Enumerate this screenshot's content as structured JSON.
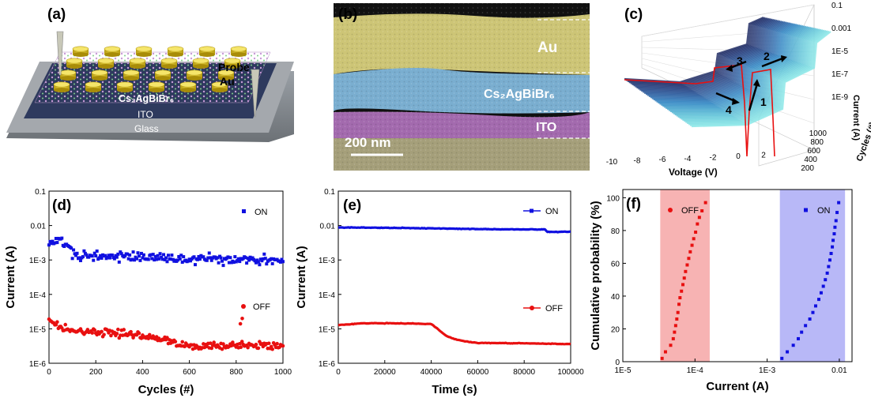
{
  "panels": {
    "a": {
      "label": "(a)",
      "labels": {
        "probe": "Probe",
        "au": "Au",
        "material": "Cs₂AgBiBr₆",
        "ito": "ITO",
        "glass": "Glass"
      }
    },
    "b": {
      "label": "(b)",
      "labels": {
        "au": "Au",
        "material": "Cs₂AgBiBr₆",
        "ito": "ITO",
        "scale": "200 nm"
      }
    },
    "c": {
      "label": "(c)",
      "xlabel": "Voltage (V)",
      "ylabel": "Current (A)",
      "zlabel": "Cycles (#)",
      "xticks": [
        "-10",
        "-8",
        "-6",
        "-4",
        "-2",
        "0",
        "2"
      ],
      "yticks": [
        "0.1",
        "0.001",
        "1E-5",
        "1E-7",
        "1E-9"
      ],
      "zticks": [
        "1000",
        "800",
        "600",
        "400",
        "200"
      ],
      "arrows": [
        "1",
        "2",
        "3",
        "4"
      ]
    },
    "d": {
      "label": "(d)",
      "xlabel": "Cycles (#)",
      "ylabel": "Current (A)",
      "xticks": [
        "0",
        "200",
        "400",
        "600",
        "800",
        "1000"
      ],
      "yticks": [
        "0.1",
        "0.01",
        "1E-3",
        "1E-4",
        "1E-5",
        "1E-6"
      ],
      "legend": {
        "on": "ON",
        "off": "OFF"
      }
    },
    "e": {
      "label": "(e)",
      "xlabel": "Time (s)",
      "ylabel": "Current (A)",
      "xticks": [
        "0",
        "20000",
        "40000",
        "60000",
        "80000",
        "100000"
      ],
      "yticks": [
        "0.1",
        "0.01",
        "1E-3",
        "1E-4",
        "1E-5",
        "1E-6"
      ],
      "legend": {
        "on": "ON",
        "off": "OFF"
      }
    },
    "f": {
      "label": "(f)",
      "xlabel": "Current (A)",
      "ylabel": "Cumulative probability (%)",
      "xticks": [
        "1E-5",
        "1E-4",
        "1E-3",
        "0.01"
      ],
      "yticks": [
        "0",
        "20",
        "40",
        "60",
        "80",
        "100"
      ],
      "legend": {
        "off": "OFF",
        "on": "ON"
      }
    }
  },
  "colors": {
    "on": "#1010e0",
    "off": "#e81010",
    "off_band": "#f7b3b3",
    "on_band": "#b8b8f7",
    "au": "#d8cc55",
    "material": "#6fa7cc",
    "ito": "#a56bb0",
    "glass_base": "#a2a07c"
  },
  "chart_data": [
    {
      "panel": "d",
      "type": "scatter",
      "xlim": [
        0,
        1000
      ],
      "ylim": [
        1e-06,
        0.1
      ],
      "yscale": "log",
      "series": [
        {
          "name": "ON",
          "trend": {
            "x": [
              0,
              60,
              100,
              130,
              300,
              500,
              700,
              850,
              1000
            ],
            "y": [
              0.0035,
              0.0032,
              0.0018,
              0.0012,
              0.0013,
              0.0011,
              0.00105,
              0.0011,
              0.0009
            ]
          }
        },
        {
          "name": "OFF",
          "trend": {
            "x": [
              0,
              30,
              60,
              120,
              300,
              450,
              560,
              650,
              800,
              1000
            ],
            "y": [
              2e-05,
              1.3e-05,
              1e-05,
              8.5e-06,
              7.5e-06,
              5.5e-06,
              3.5e-06,
              3e-06,
              3.5e-06,
              3.2e-06
            ]
          }
        }
      ]
    },
    {
      "panel": "e",
      "type": "line",
      "xlim": [
        0,
        100000
      ],
      "ylim": [
        1e-06,
        0.1
      ],
      "yscale": "log",
      "series": [
        {
          "name": "ON",
          "x": [
            0,
            20000,
            40000,
            60000,
            80000,
            89000,
            90000,
            100000
          ],
          "y": [
            0.0088,
            0.0086,
            0.0083,
            0.0079,
            0.0077,
            0.0077,
            0.0065,
            0.0066
          ]
        },
        {
          "name": "OFF",
          "x": [
            0,
            5000,
            10000,
            20000,
            30000,
            40000,
            42000,
            46000,
            50000,
            55000,
            60000,
            80000,
            100000
          ],
          "y": [
            1.3e-05,
            1.35e-05,
            1.45e-05,
            1.45e-05,
            1.43e-05,
            1.38e-05,
            1.1e-05,
            6.5e-06,
            5e-06,
            4.3e-06,
            3.9e-06,
            3.8e-06,
            3.6e-06
          ]
        }
      ]
    },
    {
      "panel": "f",
      "type": "scatter",
      "xlim": [
        1e-05,
        0.015
      ],
      "ylim": [
        0,
        105
      ],
      "xscale": "log",
      "bands": [
        {
          "series": "OFF",
          "x": [
            3.3e-05,
            0.00016
          ]
        },
        {
          "series": "ON",
          "x": [
            0.0015,
            0.012
          ]
        }
      ],
      "series": [
        {
          "name": "OFF",
          "x": [
            3.5e-05,
            3.9e-05,
            4.6e-05,
            5e-05,
            5.2e-05,
            5.4e-05,
            5.6e-05,
            5.8e-05,
            6e-05,
            6.2e-05,
            6.5e-05,
            6.8e-05,
            7.1e-05,
            7.4e-05,
            7.8e-05,
            8.2e-05,
            8.6e-05,
            9.1e-05,
            9.6e-05,
            0.000102,
            0.000108,
            0.000115,
            0.000125,
            0.00014
          ],
          "y": [
            2,
            6,
            10,
            14,
            18,
            22,
            26,
            30,
            35,
            39,
            43,
            47,
            51,
            55,
            59,
            63,
            67,
            71,
            75,
            79,
            84,
            88,
            92,
            97
          ]
        },
        {
          "name": "ON",
          "x": [
            0.0016,
            0.0019,
            0.0023,
            0.0027,
            0.003,
            0.0034,
            0.0039,
            0.0043,
            0.0047,
            0.0052,
            0.0056,
            0.006,
            0.0064,
            0.0068,
            0.0071,
            0.0074,
            0.0077,
            0.008,
            0.0082,
            0.0085,
            0.0087,
            0.009,
            0.0093,
            0.0098
          ],
          "y": [
            2,
            6,
            10,
            14,
            18,
            22,
            26,
            30,
            34,
            38,
            42,
            46,
            50,
            54,
            58,
            62,
            66,
            70,
            74,
            78,
            82,
            86,
            91,
            97
          ]
        }
      ]
    }
  ]
}
